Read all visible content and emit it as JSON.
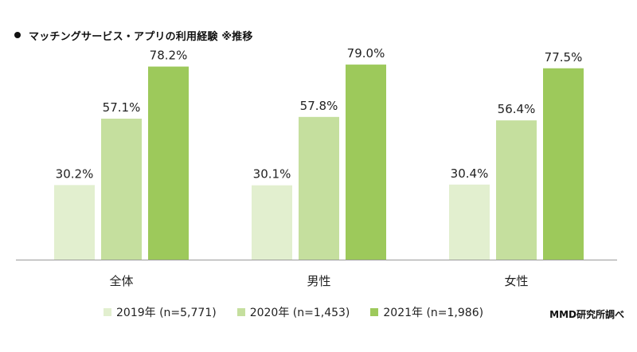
{
  "title": "マッチングサービス・アプリの利用経験 ※推移",
  "source": "MMD研究所調べ",
  "colors": {
    "series2019": "#e2efcf",
    "series2020": "#c5df9e",
    "series2021": "#9dc95b",
    "axis": "#9a9a9a",
    "label": "#222222"
  },
  "chart_data": {
    "type": "bar",
    "title": "マッチングサービス・アプリの利用経験 ※推移",
    "categories": [
      "全体",
      "男性",
      "女性"
    ],
    "series": [
      {
        "name": "2019年 (n=5,771)",
        "values": [
          30.2,
          30.1,
          30.4
        ]
      },
      {
        "name": "2020年 (n=1,453)",
        "values": [
          57.1,
          57.8,
          56.4
        ]
      },
      {
        "name": "2021年 (n=1,986)",
        "values": [
          78.2,
          79.0,
          77.5
        ]
      }
    ],
    "value_labels": [
      [
        "30.2%",
        "30.1%",
        "30.4%"
      ],
      [
        "57.1%",
        "57.8%",
        "56.4%"
      ],
      [
        "78.2%",
        "79.0%",
        "77.5%"
      ]
    ],
    "ylim": [
      0,
      100
    ],
    "grid": false,
    "legend_position": "bottom"
  }
}
